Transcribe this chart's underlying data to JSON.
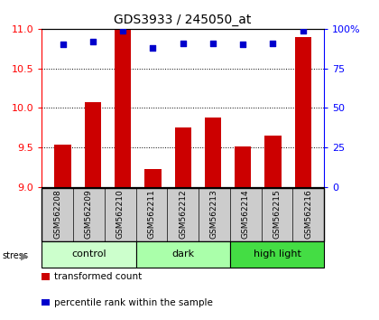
{
  "title": "GDS3933 / 245050_at",
  "samples": [
    "GSM562208",
    "GSM562209",
    "GSM562210",
    "GSM562211",
    "GSM562212",
    "GSM562213",
    "GSM562214",
    "GSM562215",
    "GSM562216"
  ],
  "transformed_counts": [
    9.54,
    10.07,
    11.0,
    9.23,
    9.75,
    9.88,
    9.51,
    9.65,
    10.9
  ],
  "percentile_ranks": [
    90,
    92,
    99,
    88,
    91,
    91,
    90,
    91,
    99
  ],
  "groups": [
    {
      "label": "control",
      "indices": [
        0,
        1,
        2
      ],
      "color": "#ccffcc"
    },
    {
      "label": "dark",
      "indices": [
        3,
        4,
        5
      ],
      "color": "#aaffaa"
    },
    {
      "label": "high light",
      "indices": [
        6,
        7,
        8
      ],
      "color": "#44dd44"
    }
  ],
  "stress_label": "stress",
  "ylim_left": [
    9.0,
    11.0
  ],
  "ylim_right": [
    0,
    100
  ],
  "yticks_left": [
    9.0,
    9.5,
    10.0,
    10.5,
    11.0
  ],
  "yticks_right": [
    0,
    25,
    50,
    75,
    100
  ],
  "bar_color": "#cc0000",
  "dot_color": "#0000cc",
  "bar_width": 0.55,
  "background_plot": "#ffffff",
  "background_label": "#cccccc"
}
